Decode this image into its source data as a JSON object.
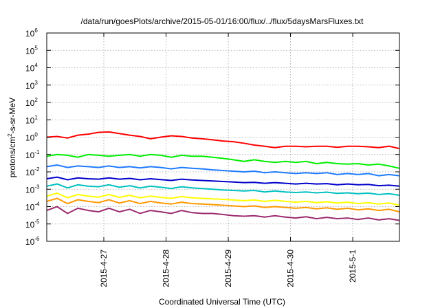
{
  "chart_data": {
    "type": "line",
    "title": "/data/run/goesPlots/archive/2015-05-01/16:00/flux/../flux/5daysMarsFluxes.txt",
    "xlabel": "Coordinated Universal Time (UTC)",
    "ylabel_parts": [
      "protons/cm",
      "2",
      "-s-sr-MeV"
    ],
    "yscale": "log",
    "ylim": [
      1e-06,
      1000000.0
    ],
    "xlim": [
      "2015-04-26T02:00",
      "2015-05-01T18:00"
    ],
    "grid": true,
    "legend": "none",
    "x_ticks": [
      {
        "label": "2015-4-27",
        "date": "2015-04-27T00:00"
      },
      {
        "label": "2015-4-28",
        "date": "2015-04-28T00:00"
      },
      {
        "label": "2015-4-29",
        "date": "2015-04-29T00:00"
      },
      {
        "label": "2015-4-30",
        "date": "2015-04-30T00:00"
      },
      {
        "label": "2015-5-1",
        "date": "2015-05-01T00:00"
      }
    ],
    "y_ticks": [
      {
        "base": "10",
        "exp": "-6",
        "value": 1e-06
      },
      {
        "base": "10",
        "exp": "-5",
        "value": 1e-05
      },
      {
        "base": "10",
        "exp": "-4",
        "value": 0.0001
      },
      {
        "base": "10",
        "exp": "-3",
        "value": 0.001
      },
      {
        "base": "10",
        "exp": "-2",
        "value": 0.01
      },
      {
        "base": "10",
        "exp": "-1",
        "value": 0.1
      },
      {
        "base": "10",
        "exp": "0",
        "value": 1
      },
      {
        "base": "10",
        "exp": "1",
        "value": 10
      },
      {
        "base": "10",
        "exp": "2",
        "value": 100
      },
      {
        "base": "10",
        "exp": "3",
        "value": 1000
      },
      {
        "base": "10",
        "exp": "4",
        "value": 10000
      },
      {
        "base": "10",
        "exp": "5",
        "value": 100000
      },
      {
        "base": "10",
        "exp": "6",
        "value": 1000000
      }
    ],
    "series": [
      {
        "color": "#ff0000",
        "x": [
          "2015-04-26T02:00",
          "2015-04-26T06:00",
          "2015-04-26T10:00",
          "2015-04-26T14:00",
          "2015-04-26T18:00",
          "2015-04-26T22:00",
          "2015-04-27T02:00",
          "2015-04-27T06:00",
          "2015-04-27T10:00",
          "2015-04-27T14:00",
          "2015-04-27T18:00",
          "2015-04-27T22:00",
          "2015-04-28T02:00",
          "2015-04-28T06:00",
          "2015-04-28T10:00",
          "2015-04-28T14:00",
          "2015-04-28T18:00",
          "2015-04-28T22:00",
          "2015-04-29T02:00",
          "2015-04-29T06:00",
          "2015-04-29T10:00",
          "2015-04-29T14:00",
          "2015-04-29T18:00",
          "2015-04-29T22:00",
          "2015-04-30T02:00",
          "2015-04-30T06:00",
          "2015-04-30T10:00",
          "2015-04-30T14:00",
          "2015-04-30T18:00",
          "2015-04-30T22:00",
          "2015-05-01T02:00",
          "2015-05-01T06:00",
          "2015-05-01T10:00",
          "2015-05-01T14:00",
          "2015-05-01T18:00"
        ],
        "y": [
          1.0,
          1.1,
          0.9,
          1.3,
          1.5,
          1.9,
          2.0,
          1.6,
          1.3,
          1.1,
          0.8,
          1.0,
          1.2,
          1.1,
          0.9,
          0.8,
          0.7,
          0.6,
          0.55,
          0.45,
          0.35,
          0.3,
          0.25,
          0.3,
          0.3,
          0.28,
          0.3,
          0.3,
          0.26,
          0.3,
          0.3,
          0.28,
          0.25,
          0.3,
          0.22
        ]
      },
      {
        "color": "#00ee00",
        "x": [
          "2015-04-26T02:00",
          "2015-04-26T06:00",
          "2015-04-26T10:00",
          "2015-04-26T14:00",
          "2015-04-26T18:00",
          "2015-04-26T22:00",
          "2015-04-27T02:00",
          "2015-04-27T06:00",
          "2015-04-27T10:00",
          "2015-04-27T14:00",
          "2015-04-27T18:00",
          "2015-04-27T22:00",
          "2015-04-28T02:00",
          "2015-04-28T06:00",
          "2015-04-28T10:00",
          "2015-04-28T14:00",
          "2015-04-28T18:00",
          "2015-04-28T22:00",
          "2015-04-29T02:00",
          "2015-04-29T06:00",
          "2015-04-29T10:00",
          "2015-04-29T14:00",
          "2015-04-29T18:00",
          "2015-04-29T22:00",
          "2015-04-30T02:00",
          "2015-04-30T06:00",
          "2015-04-30T10:00",
          "2015-04-30T14:00",
          "2015-04-30T18:00",
          "2015-04-30T22:00",
          "2015-05-01T02:00",
          "2015-05-01T06:00",
          "2015-05-01T10:00",
          "2015-05-01T14:00",
          "2015-05-01T18:00"
        ],
        "y": [
          0.08,
          0.1,
          0.09,
          0.07,
          0.1,
          0.09,
          0.08,
          0.09,
          0.1,
          0.08,
          0.1,
          0.09,
          0.07,
          0.09,
          0.08,
          0.08,
          0.07,
          0.06,
          0.05,
          0.04,
          0.05,
          0.04,
          0.035,
          0.04,
          0.035,
          0.04,
          0.03,
          0.035,
          0.03,
          0.028,
          0.03,
          0.025,
          0.028,
          0.022,
          0.016
        ]
      },
      {
        "color": "#1e7bff",
        "x": [
          "2015-04-26T02:00",
          "2015-04-26T06:00",
          "2015-04-26T10:00",
          "2015-04-26T14:00",
          "2015-04-26T18:00",
          "2015-04-26T22:00",
          "2015-04-27T02:00",
          "2015-04-27T06:00",
          "2015-04-27T10:00",
          "2015-04-27T14:00",
          "2015-04-27T18:00",
          "2015-04-27T22:00",
          "2015-04-28T02:00",
          "2015-04-28T06:00",
          "2015-04-28T10:00",
          "2015-04-28T14:00",
          "2015-04-28T18:00",
          "2015-04-28T22:00",
          "2015-04-29T02:00",
          "2015-04-29T06:00",
          "2015-04-29T10:00",
          "2015-04-29T14:00",
          "2015-04-29T18:00",
          "2015-04-29T22:00",
          "2015-04-30T02:00",
          "2015-04-30T06:00",
          "2015-04-30T10:00",
          "2015-04-30T14:00",
          "2015-04-30T18:00",
          "2015-04-30T22:00",
          "2015-05-01T02:00",
          "2015-05-01T06:00",
          "2015-05-01T10:00",
          "2015-05-01T14:00",
          "2015-05-01T18:00"
        ],
        "y": [
          0.02,
          0.025,
          0.018,
          0.022,
          0.02,
          0.018,
          0.022,
          0.018,
          0.02,
          0.017,
          0.02,
          0.018,
          0.015,
          0.018,
          0.016,
          0.015,
          0.013,
          0.012,
          0.011,
          0.01,
          0.011,
          0.009,
          0.01,
          0.009,
          0.008,
          0.009,
          0.008,
          0.009,
          0.007,
          0.008,
          0.007,
          0.008,
          0.006,
          0.007,
          0.006
        ]
      },
      {
        "color": "#0000cc",
        "x": [
          "2015-04-26T02:00",
          "2015-04-26T06:00",
          "2015-04-26T10:00",
          "2015-04-26T14:00",
          "2015-04-26T18:00",
          "2015-04-26T22:00",
          "2015-04-27T02:00",
          "2015-04-27T06:00",
          "2015-04-27T10:00",
          "2015-04-27T14:00",
          "2015-04-27T18:00",
          "2015-04-27T22:00",
          "2015-04-28T02:00",
          "2015-04-28T06:00",
          "2015-04-28T10:00",
          "2015-04-28T14:00",
          "2015-04-28T18:00",
          "2015-04-28T22:00",
          "2015-04-29T02:00",
          "2015-04-29T06:00",
          "2015-04-29T10:00",
          "2015-04-29T14:00",
          "2015-04-29T18:00",
          "2015-04-29T22:00",
          "2015-04-30T02:00",
          "2015-04-30T06:00",
          "2015-04-30T10:00",
          "2015-04-30T14:00",
          "2015-04-30T18:00",
          "2015-04-30T22:00",
          "2015-05-01T02:00",
          "2015-05-01T06:00",
          "2015-05-01T10:00",
          "2015-05-01T14:00",
          "2015-05-01T18:00"
        ],
        "y": [
          0.004,
          0.005,
          0.0035,
          0.0045,
          0.004,
          0.0038,
          0.0045,
          0.0038,
          0.0042,
          0.0035,
          0.004,
          0.0036,
          0.0032,
          0.0038,
          0.0034,
          0.0032,
          0.003,
          0.0028,
          0.0026,
          0.0024,
          0.0025,
          0.0022,
          0.0024,
          0.0022,
          0.002,
          0.0022,
          0.002,
          0.0021,
          0.0018,
          0.002,
          0.0018,
          0.0019,
          0.0016,
          0.0017,
          0.0015
        ]
      },
      {
        "color": "#00c0c0",
        "x": [
          "2015-04-26T02:00",
          "2015-04-26T06:00",
          "2015-04-26T10:00",
          "2015-04-26T14:00",
          "2015-04-26T18:00",
          "2015-04-26T22:00",
          "2015-04-27T02:00",
          "2015-04-27T06:00",
          "2015-04-27T10:00",
          "2015-04-27T14:00",
          "2015-04-27T18:00",
          "2015-04-27T22:00",
          "2015-04-28T02:00",
          "2015-04-28T06:00",
          "2015-04-28T10:00",
          "2015-04-28T14:00",
          "2015-04-28T18:00",
          "2015-04-28T22:00",
          "2015-04-29T02:00",
          "2015-04-29T06:00",
          "2015-04-29T10:00",
          "2015-04-29T14:00",
          "2015-04-29T18:00",
          "2015-04-29T22:00",
          "2015-04-30T02:00",
          "2015-04-30T06:00",
          "2015-04-30T10:00",
          "2015-04-30T14:00",
          "2015-04-30T18:00",
          "2015-04-30T22:00",
          "2015-05-01T02:00",
          "2015-05-01T06:00",
          "2015-05-01T10:00",
          "2015-05-01T14:00",
          "2015-05-01T18:00"
        ],
        "y": [
          0.0015,
          0.002,
          0.0012,
          0.0018,
          0.0015,
          0.0014,
          0.0018,
          0.0013,
          0.0016,
          0.0012,
          0.0015,
          0.0013,
          0.0011,
          0.0014,
          0.0012,
          0.0011,
          0.001,
          0.0009,
          0.00085,
          0.0008,
          0.00085,
          0.0007,
          0.0008,
          0.0007,
          0.00065,
          0.0007,
          0.00062,
          0.00068,
          0.00058,
          0.00062,
          0.00055,
          0.0006,
          0.0005,
          0.00055,
          0.00045
        ]
      },
      {
        "color": "#ffff00",
        "x": [
          "2015-04-26T02:00",
          "2015-04-26T06:00",
          "2015-04-26T10:00",
          "2015-04-26T14:00",
          "2015-04-26T18:00",
          "2015-04-26T22:00",
          "2015-04-27T02:00",
          "2015-04-27T06:00",
          "2015-04-27T10:00",
          "2015-04-27T14:00",
          "2015-04-27T18:00",
          "2015-04-27T22:00",
          "2015-04-28T02:00",
          "2015-04-28T06:00",
          "2015-04-28T10:00",
          "2015-04-28T14:00",
          "2015-04-28T18:00",
          "2015-04-28T22:00",
          "2015-04-29T02:00",
          "2015-04-29T06:00",
          "2015-04-29T10:00",
          "2015-04-29T14:00",
          "2015-04-29T18:00",
          "2015-04-29T22:00",
          "2015-04-30T02:00",
          "2015-04-30T06:00",
          "2015-04-30T10:00",
          "2015-04-30T14:00",
          "2015-04-30T18:00",
          "2015-04-30T22:00",
          "2015-05-01T02:00",
          "2015-05-01T06:00",
          "2015-05-01T10:00",
          "2015-05-01T14:00",
          "2015-05-01T18:00"
        ],
        "y": [
          0.0004,
          0.0006,
          0.00032,
          0.0005,
          0.0004,
          0.00035,
          0.0005,
          0.00034,
          0.00045,
          0.00032,
          0.0004,
          0.00034,
          0.0003,
          0.00038,
          0.00032,
          0.0003,
          0.00028,
          0.00026,
          0.00024,
          0.00022,
          0.00024,
          0.0002,
          0.00023,
          0.0002,
          0.00018,
          0.0002,
          0.00017,
          0.00019,
          0.00016,
          0.00018,
          0.00015,
          0.00017,
          0.00014,
          0.00016,
          0.00012
        ]
      },
      {
        "color": "#ff9900",
        "x": [
          "2015-04-26T02:00",
          "2015-04-26T06:00",
          "2015-04-26T10:00",
          "2015-04-26T14:00",
          "2015-04-26T18:00",
          "2015-04-26T22:00",
          "2015-04-27T02:00",
          "2015-04-27T06:00",
          "2015-04-27T10:00",
          "2015-04-27T14:00",
          "2015-04-27T18:00",
          "2015-04-27T22:00",
          "2015-04-28T02:00",
          "2015-04-28T06:00",
          "2015-04-28T10:00",
          "2015-04-28T14:00",
          "2015-04-28T18:00",
          "2015-04-28T22:00",
          "2015-04-29T02:00",
          "2015-04-29T06:00",
          "2015-04-29T10:00",
          "2015-04-29T14:00",
          "2015-04-29T18:00",
          "2015-04-29T22:00",
          "2015-04-30T02:00",
          "2015-04-30T06:00",
          "2015-04-30T10:00",
          "2015-04-30T14:00",
          "2015-04-30T18:00",
          "2015-04-30T22:00",
          "2015-05-01T02:00",
          "2015-05-01T06:00",
          "2015-05-01T10:00",
          "2015-05-01T14:00",
          "2015-05-01T18:00"
        ],
        "y": [
          0.0002,
          0.0003,
          0.00015,
          0.00025,
          0.0002,
          0.00017,
          0.00025,
          0.00016,
          0.00022,
          0.00015,
          0.0002,
          0.00016,
          0.00014,
          0.00018,
          0.00015,
          0.00014,
          0.00013,
          0.00012,
          0.00011,
          0.0001,
          0.00011,
          9e-05,
          0.0001,
          9e-05,
          8e-05,
          9e-05,
          7.5e-05,
          8.5e-05,
          7e-05,
          8e-05,
          6.5e-05,
          7.5e-05,
          6e-05,
          7e-05,
          5e-05
        ]
      },
      {
        "color": "#9b2a6e",
        "x": [
          "2015-04-26T02:00",
          "2015-04-26T06:00",
          "2015-04-26T10:00",
          "2015-04-26T14:00",
          "2015-04-26T18:00",
          "2015-04-26T22:00",
          "2015-04-27T02:00",
          "2015-04-27T06:00",
          "2015-04-27T10:00",
          "2015-04-27T14:00",
          "2015-04-27T18:00",
          "2015-04-27T22:00",
          "2015-04-28T02:00",
          "2015-04-28T06:00",
          "2015-04-28T10:00",
          "2015-04-28T14:00",
          "2015-04-28T18:00",
          "2015-04-28T22:00",
          "2015-04-29T02:00",
          "2015-04-29T06:00",
          "2015-04-29T10:00",
          "2015-04-29T14:00",
          "2015-04-29T18:00",
          "2015-04-29T22:00",
          "2015-04-30T02:00",
          "2015-04-30T06:00",
          "2015-04-30T10:00",
          "2015-04-30T14:00",
          "2015-04-30T18:00",
          "2015-04-30T22:00",
          "2015-05-01T02:00",
          "2015-05-01T06:00",
          "2015-05-01T10:00",
          "2015-05-01T14:00",
          "2015-05-01T18:00"
        ],
        "y": [
          6e-05,
          0.0001,
          4e-05,
          8e-05,
          6e-05,
          5e-05,
          8e-05,
          5e-05,
          7e-05,
          4e-05,
          6e-05,
          5e-05,
          4e-05,
          6e-05,
          4.5e-05,
          4e-05,
          4e-05,
          3.5e-05,
          3e-05,
          2.8e-05,
          3e-05,
          2.5e-05,
          3e-05,
          2.5e-05,
          2.2e-05,
          2.6e-05,
          2e-05,
          2.4e-05,
          2e-05,
          2.2e-05,
          1.8e-05,
          2.2e-05,
          1.7e-05,
          2e-05,
          1.6e-05
        ]
      }
    ]
  }
}
